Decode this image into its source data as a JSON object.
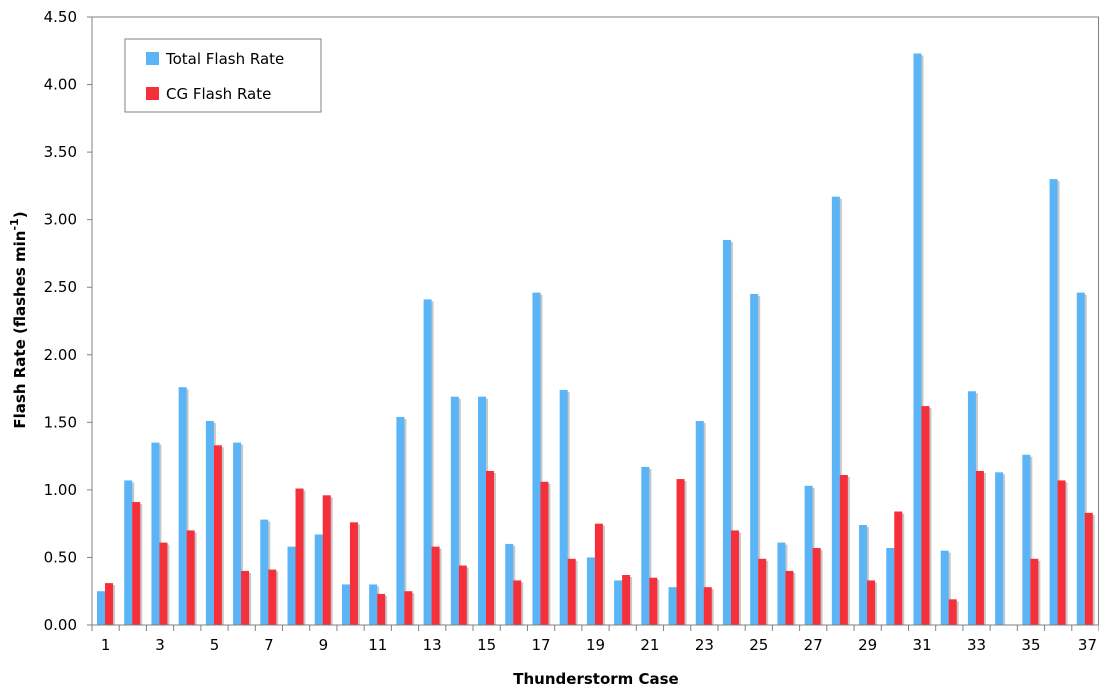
{
  "chart_data": {
    "type": "bar",
    "xlabel": "Thunderstorm Case",
    "ylabel_prefix": "Flash Rate (flashes min",
    "ylabel_superscript": "-1",
    "ylabel_suffix": ")",
    "ylim": [
      0,
      4.5
    ],
    "ytick_labels": [
      "0.00",
      "0.50",
      "1.00",
      "1.50",
      "2.00",
      "2.50",
      "3.00",
      "3.50",
      "4.00",
      "4.50"
    ],
    "ytick_values": [
      0,
      0.5,
      1.0,
      1.5,
      2.0,
      2.5,
      3.0,
      3.5,
      4.0,
      4.5
    ],
    "categories": [
      "1",
      "2",
      "3",
      "4",
      "5",
      "6",
      "7",
      "8",
      "9",
      "10",
      "11",
      "12",
      "13",
      "14",
      "15",
      "16",
      "17",
      "18",
      "19",
      "20",
      "21",
      "22",
      "23",
      "24",
      "25",
      "26",
      "27",
      "28",
      "29",
      "30",
      "31",
      "32",
      "33",
      "34",
      "35",
      "36",
      "37"
    ],
    "xtick_labels_shown": [
      "1",
      "3",
      "5",
      "7",
      "9",
      "11",
      "13",
      "15",
      "17",
      "19",
      "21",
      "23",
      "25",
      "27",
      "29",
      "31",
      "33",
      "35",
      "37"
    ],
    "legend_position": "top-left",
    "grid": false,
    "series": [
      {
        "name": "Total Flash Rate",
        "color": "#5ab4f5",
        "values": [
          0.25,
          1.07,
          1.35,
          1.76,
          1.51,
          1.35,
          0.78,
          0.58,
          0.67,
          0.3,
          0.3,
          1.54,
          2.41,
          1.69,
          1.69,
          0.6,
          2.46,
          1.74,
          0.5,
          0.33,
          1.17,
          0.28,
          1.51,
          2.85,
          2.45,
          0.61,
          1.03,
          3.17,
          0.74,
          0.57,
          4.23,
          0.55,
          1.73,
          1.13,
          1.26,
          3.3,
          2.46
        ]
      },
      {
        "name": "CG Flash Rate",
        "color": "#f5303a",
        "values": [
          0.31,
          0.91,
          0.61,
          0.7,
          1.33,
          0.4,
          0.41,
          1.01,
          0.96,
          0.76,
          0.23,
          0.25,
          0.58,
          0.44,
          1.14,
          0.33,
          1.06,
          0.49,
          0.75,
          0.37,
          0.35,
          1.08,
          0.28,
          0.7,
          0.49,
          0.4,
          0.57,
          1.11,
          0.33,
          0.84,
          1.62,
          0.19,
          1.14,
          0,
          0.49,
          1.07,
          0.83
        ]
      }
    ]
  }
}
